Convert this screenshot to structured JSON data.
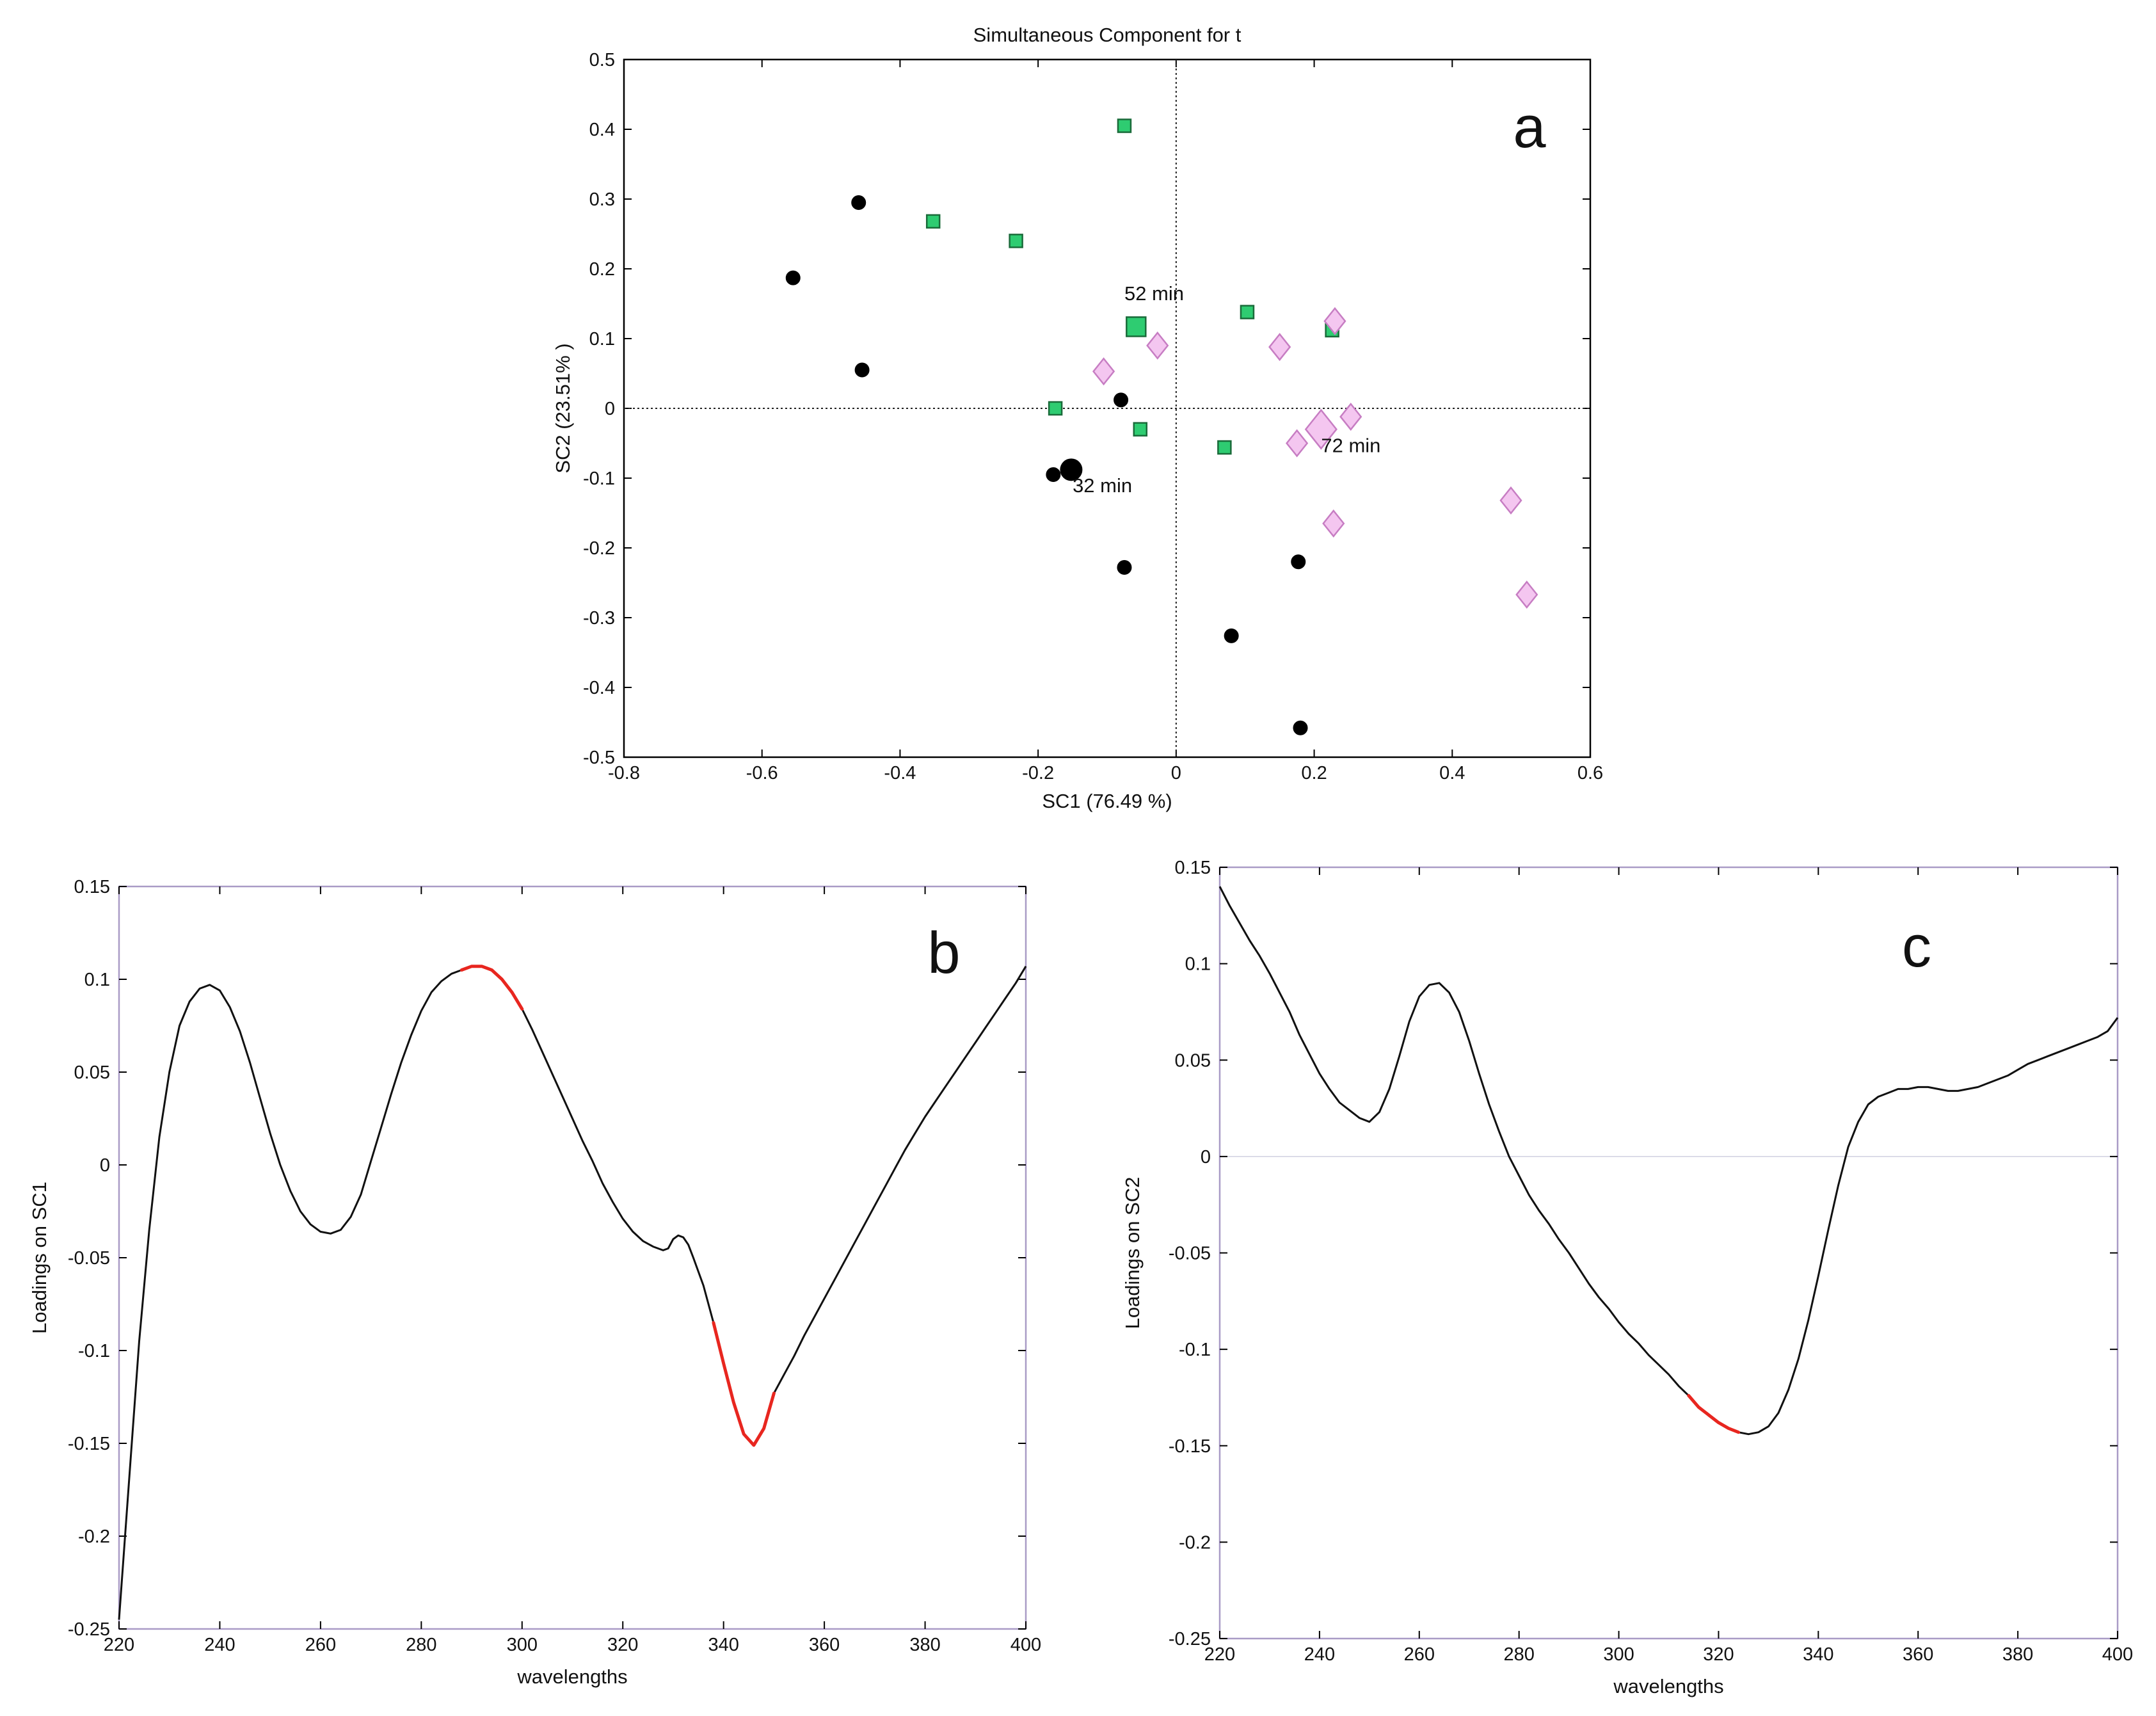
{
  "chart_data": [
    {
      "panel": "a",
      "type": "scatter",
      "title": "Simultaneous Component for t",
      "xlabel": "SC1 (76.49 %)",
      "ylabel": "SC2 (23.51% )",
      "xlim": [
        -0.8,
        0.6
      ],
      "ylim": [
        -0.5,
        0.5
      ],
      "xticks": [
        -0.8,
        -0.6,
        -0.4,
        -0.2,
        0,
        0.2,
        0.4,
        0.6
      ],
      "yticks": [
        0.5,
        0.4,
        0.3,
        0.2,
        0.1,
        0,
        -0.1,
        -0.2,
        -0.3,
        -0.4,
        -0.5
      ],
      "xtick_labels": [
        "-0.8",
        "-0.6",
        "-0.4",
        "-0.2",
        "0",
        "0.2",
        "0.4",
        "0.6"
      ],
      "ytick_labels": [
        "0.5",
        "0.4",
        "0.3",
        "0.2",
        "0.1",
        "0",
        "-0.1",
        "-0.2",
        "-0.3",
        "-0.4",
        "-0.5"
      ],
      "series": [
        {
          "name": "32 min group",
          "marker": "circle",
          "color": "#000000",
          "points": [
            [
              -0.46,
              0.295
            ],
            [
              -0.555,
              0.187
            ],
            [
              -0.455,
              0.055
            ],
            [
              -0.08,
              0.012
            ],
            [
              -0.178,
              -0.095
            ],
            [
              -0.075,
              -0.228
            ],
            [
              0.08,
              -0.326
            ],
            [
              0.177,
              -0.22
            ],
            [
              0.18,
              -0.458
            ]
          ],
          "centroid": [
            -0.152,
            -0.088
          ]
        },
        {
          "name": "52 min group",
          "marker": "square",
          "color": "#2ecc71",
          "points": [
            [
              -0.075,
              0.405
            ],
            [
              -0.352,
              0.268
            ],
            [
              -0.232,
              0.24
            ],
            [
              0.103,
              0.138
            ],
            [
              0.226,
              0.112
            ],
            [
              -0.175,
              0.0
            ],
            [
              -0.052,
              -0.03
            ],
            [
              0.07,
              -0.056
            ]
          ],
          "centroid": [
            -0.058,
            0.117
          ]
        },
        {
          "name": "72 min group",
          "marker": "diamond",
          "color": "#f4c6f0",
          "points": [
            [
              -0.105,
              0.053
            ],
            [
              -0.027,
              0.09
            ],
            [
              0.15,
              0.088
            ],
            [
              0.23,
              0.125
            ],
            [
              0.253,
              -0.012
            ],
            [
              0.175,
              -0.05
            ],
            [
              0.228,
              -0.165
            ],
            [
              0.485,
              -0.132
            ],
            [
              0.508,
              -0.267
            ]
          ],
          "centroid": [
            0.21,
            -0.03
          ]
        }
      ],
      "annotations": [
        {
          "text": "52 min",
          "x": -0.075,
          "y": 0.155
        },
        {
          "text": "32 min",
          "x": -0.15,
          "y": -0.12
        },
        {
          "text": "72 min",
          "x": 0.21,
          "y": -0.063
        }
      ],
      "panel_label": "a"
    },
    {
      "panel": "b",
      "type": "line",
      "xlabel": "wavelengths",
      "ylabel": "Loadings on SC1",
      "xlim": [
        220,
        400
      ],
      "ylim": [
        -0.25,
        0.15
      ],
      "xticks": [
        220,
        240,
        260,
        280,
        300,
        320,
        340,
        360,
        380,
        400
      ],
      "yticks": [
        0.15,
        0.1,
        0.05,
        0,
        -0.05,
        -0.1,
        -0.15,
        -0.2,
        -0.25
      ],
      "xtick_labels": [
        "220",
        "240",
        "260",
        "280",
        "300",
        "320",
        "340",
        "360",
        "380",
        "400"
      ],
      "ytick_labels": [
        "0.15",
        "0.1",
        "0.05",
        "0",
        "-0.05",
        "-0.1",
        "-0.15",
        "-0.2",
        "-0.25"
      ],
      "x": [
        220,
        222,
        224,
        226,
        228,
        230,
        232,
        234,
        236,
        238,
        240,
        242,
        244,
        246,
        248,
        250,
        252,
        254,
        256,
        258,
        260,
        262,
        264,
        266,
        268,
        270,
        272,
        274,
        276,
        278,
        280,
        282,
        284,
        286,
        288,
        290,
        292,
        294,
        296,
        298,
        300,
        302,
        304,
        306,
        308,
        310,
        312,
        314,
        316,
        318,
        320,
        322,
        324,
        326,
        328,
        329,
        330,
        331,
        332,
        333,
        334,
        336,
        338,
        340,
        342,
        344,
        346,
        348,
        350,
        352,
        354,
        356,
        358,
        360,
        362,
        364,
        366,
        368,
        370,
        372,
        374,
        376,
        378,
        380,
        382,
        384,
        386,
        388,
        390,
        392,
        394,
        396,
        398,
        400
      ],
      "y": [
        -0.245,
        -0.17,
        -0.095,
        -0.035,
        0.015,
        0.05,
        0.075,
        0.088,
        0.095,
        0.097,
        0.094,
        0.085,
        0.072,
        0.055,
        0.036,
        0.017,
        0.0,
        -0.014,
        -0.025,
        -0.032,
        -0.036,
        -0.037,
        -0.035,
        -0.028,
        -0.016,
        0.002,
        0.02,
        0.038,
        0.055,
        0.07,
        0.083,
        0.093,
        0.099,
        0.103,
        0.105,
        0.107,
        0.107,
        0.105,
        0.1,
        0.093,
        0.084,
        0.073,
        0.061,
        0.049,
        0.037,
        0.025,
        0.013,
        0.002,
        -0.01,
        -0.02,
        -0.029,
        -0.036,
        -0.041,
        -0.044,
        -0.046,
        -0.045,
        -0.04,
        -0.038,
        -0.039,
        -0.043,
        -0.05,
        -0.065,
        -0.085,
        -0.107,
        -0.128,
        -0.145,
        -0.151,
        -0.142,
        -0.123,
        -0.113,
        -0.103,
        -0.092,
        -0.082,
        -0.072,
        -0.062,
        -0.052,
        -0.042,
        -0.032,
        -0.022,
        -0.012,
        -0.002,
        0.008,
        0.017,
        0.026,
        0.034,
        0.042,
        0.05,
        0.058,
        0.066,
        0.074,
        0.082,
        0.09,
        0.098,
        0.107
      ],
      "highlights": [
        [
          287,
          301
        ],
        [
          338,
          351
        ]
      ],
      "highlight_color": "#e8261f",
      "zero_line": false,
      "panel_label": "b"
    },
    {
      "panel": "c",
      "type": "line",
      "xlabel": "wavelengths",
      "ylabel": "Loadings on SC2",
      "xlim": [
        220,
        400
      ],
      "ylim": [
        -0.25,
        0.15
      ],
      "xticks": [
        220,
        240,
        260,
        280,
        300,
        320,
        340,
        360,
        380,
        400
      ],
      "yticks": [
        0.15,
        0.1,
        0.05,
        0,
        -0.05,
        -0.1,
        -0.15,
        -0.2,
        -0.25
      ],
      "xtick_labels": [
        "220",
        "240",
        "260",
        "280",
        "300",
        "320",
        "340",
        "360",
        "380",
        "400"
      ],
      "ytick_labels": [
        "0.15",
        "0.1",
        "0.05",
        "0",
        "-0.05",
        "-0.1",
        "-0.15",
        "-0.2",
        "-0.25"
      ],
      "x": [
        220,
        222,
        224,
        226,
        228,
        230,
        232,
        234,
        236,
        238,
        240,
        242,
        244,
        246,
        248,
        250,
        252,
        254,
        256,
        258,
        260,
        262,
        264,
        266,
        268,
        270,
        272,
        274,
        276,
        278,
        280,
        282,
        284,
        286,
        288,
        290,
        292,
        294,
        296,
        298,
        300,
        302,
        304,
        306,
        308,
        310,
        312,
        314,
        316,
        318,
        320,
        322,
        324,
        326,
        328,
        330,
        332,
        334,
        336,
        338,
        340,
        342,
        344,
        346,
        348,
        350,
        352,
        354,
        356,
        358,
        360,
        362,
        364,
        366,
        368,
        370,
        372,
        374,
        376,
        378,
        380,
        382,
        384,
        386,
        388,
        390,
        392,
        394,
        396,
        398,
        400
      ],
      "y": [
        0.14,
        0.13,
        0.121,
        0.112,
        0.104,
        0.095,
        0.085,
        0.075,
        0.063,
        0.053,
        0.043,
        0.035,
        0.028,
        0.024,
        0.02,
        0.018,
        0.023,
        0.035,
        0.052,
        0.07,
        0.083,
        0.089,
        0.09,
        0.085,
        0.075,
        0.06,
        0.043,
        0.027,
        0.013,
        0.0,
        -0.01,
        -0.02,
        -0.028,
        -0.035,
        -0.043,
        -0.05,
        -0.058,
        -0.066,
        -0.073,
        -0.079,
        -0.086,
        -0.092,
        -0.097,
        -0.103,
        -0.108,
        -0.113,
        -0.119,
        -0.124,
        -0.13,
        -0.134,
        -0.138,
        -0.141,
        -0.143,
        -0.144,
        -0.143,
        -0.14,
        -0.133,
        -0.121,
        -0.105,
        -0.085,
        -0.062,
        -0.038,
        -0.015,
        0.005,
        0.018,
        0.027,
        0.031,
        0.033,
        0.035,
        0.035,
        0.036,
        0.036,
        0.035,
        0.034,
        0.034,
        0.035,
        0.036,
        0.038,
        0.04,
        0.042,
        0.045,
        0.048,
        0.05,
        0.052,
        0.054,
        0.056,
        0.058,
        0.06,
        0.062,
        0.065,
        0.072
      ],
      "highlights": [
        [
          313,
          325
        ]
      ],
      "highlight_color": "#e8261f",
      "zero_line": true,
      "panel_label": "c"
    }
  ]
}
